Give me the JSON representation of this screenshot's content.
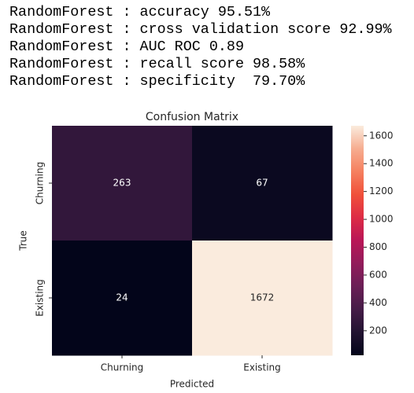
{
  "console": {
    "lines": [
      "RandomForest : accuracy 95.51%",
      "RandomForest : cross validation score 92.99%",
      "RandomForest : AUC ROC 0.89",
      "RandomForest : recall score 98.58%",
      "RandomForest : specificity  79.70%"
    ]
  },
  "chart_data": {
    "type": "heatmap",
    "title": "Confusion Matrix",
    "x_label": "Predicted",
    "y_label": "True",
    "x_categories": [
      "Churning",
      "Existing"
    ],
    "y_categories": [
      "Churning",
      "Existing"
    ],
    "values": [
      [
        263,
        67
      ],
      [
        24,
        1672
      ]
    ],
    "colormap": "rocket",
    "clim": [
      24,
      1672
    ],
    "cticks": [
      200,
      400,
      600,
      800,
      1000,
      1200,
      1400,
      1600
    ]
  }
}
